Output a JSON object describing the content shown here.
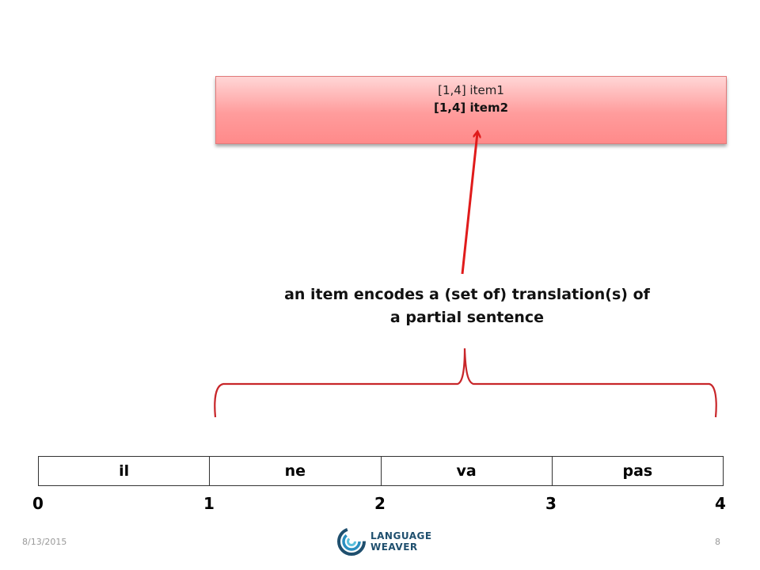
{
  "item_box": {
    "line1": "[1,4] item1",
    "line2": "[1,4] item2"
  },
  "caption": {
    "line1": "an item encodes a (set of) translation(s) of",
    "line2": "a partial sentence"
  },
  "words": [
    "il",
    "ne",
    "va",
    "pas"
  ],
  "positions": [
    "0",
    "1",
    "2",
    "3",
    "4"
  ],
  "footer": {
    "date": "8/13/2015",
    "page": "8",
    "logo_line1": "LANGUAGE",
    "logo_line2": "WEAVER"
  },
  "colors": {
    "arrow": "#e01b1b",
    "brace": "#c8262a",
    "logo": "#1f4f6e"
  }
}
